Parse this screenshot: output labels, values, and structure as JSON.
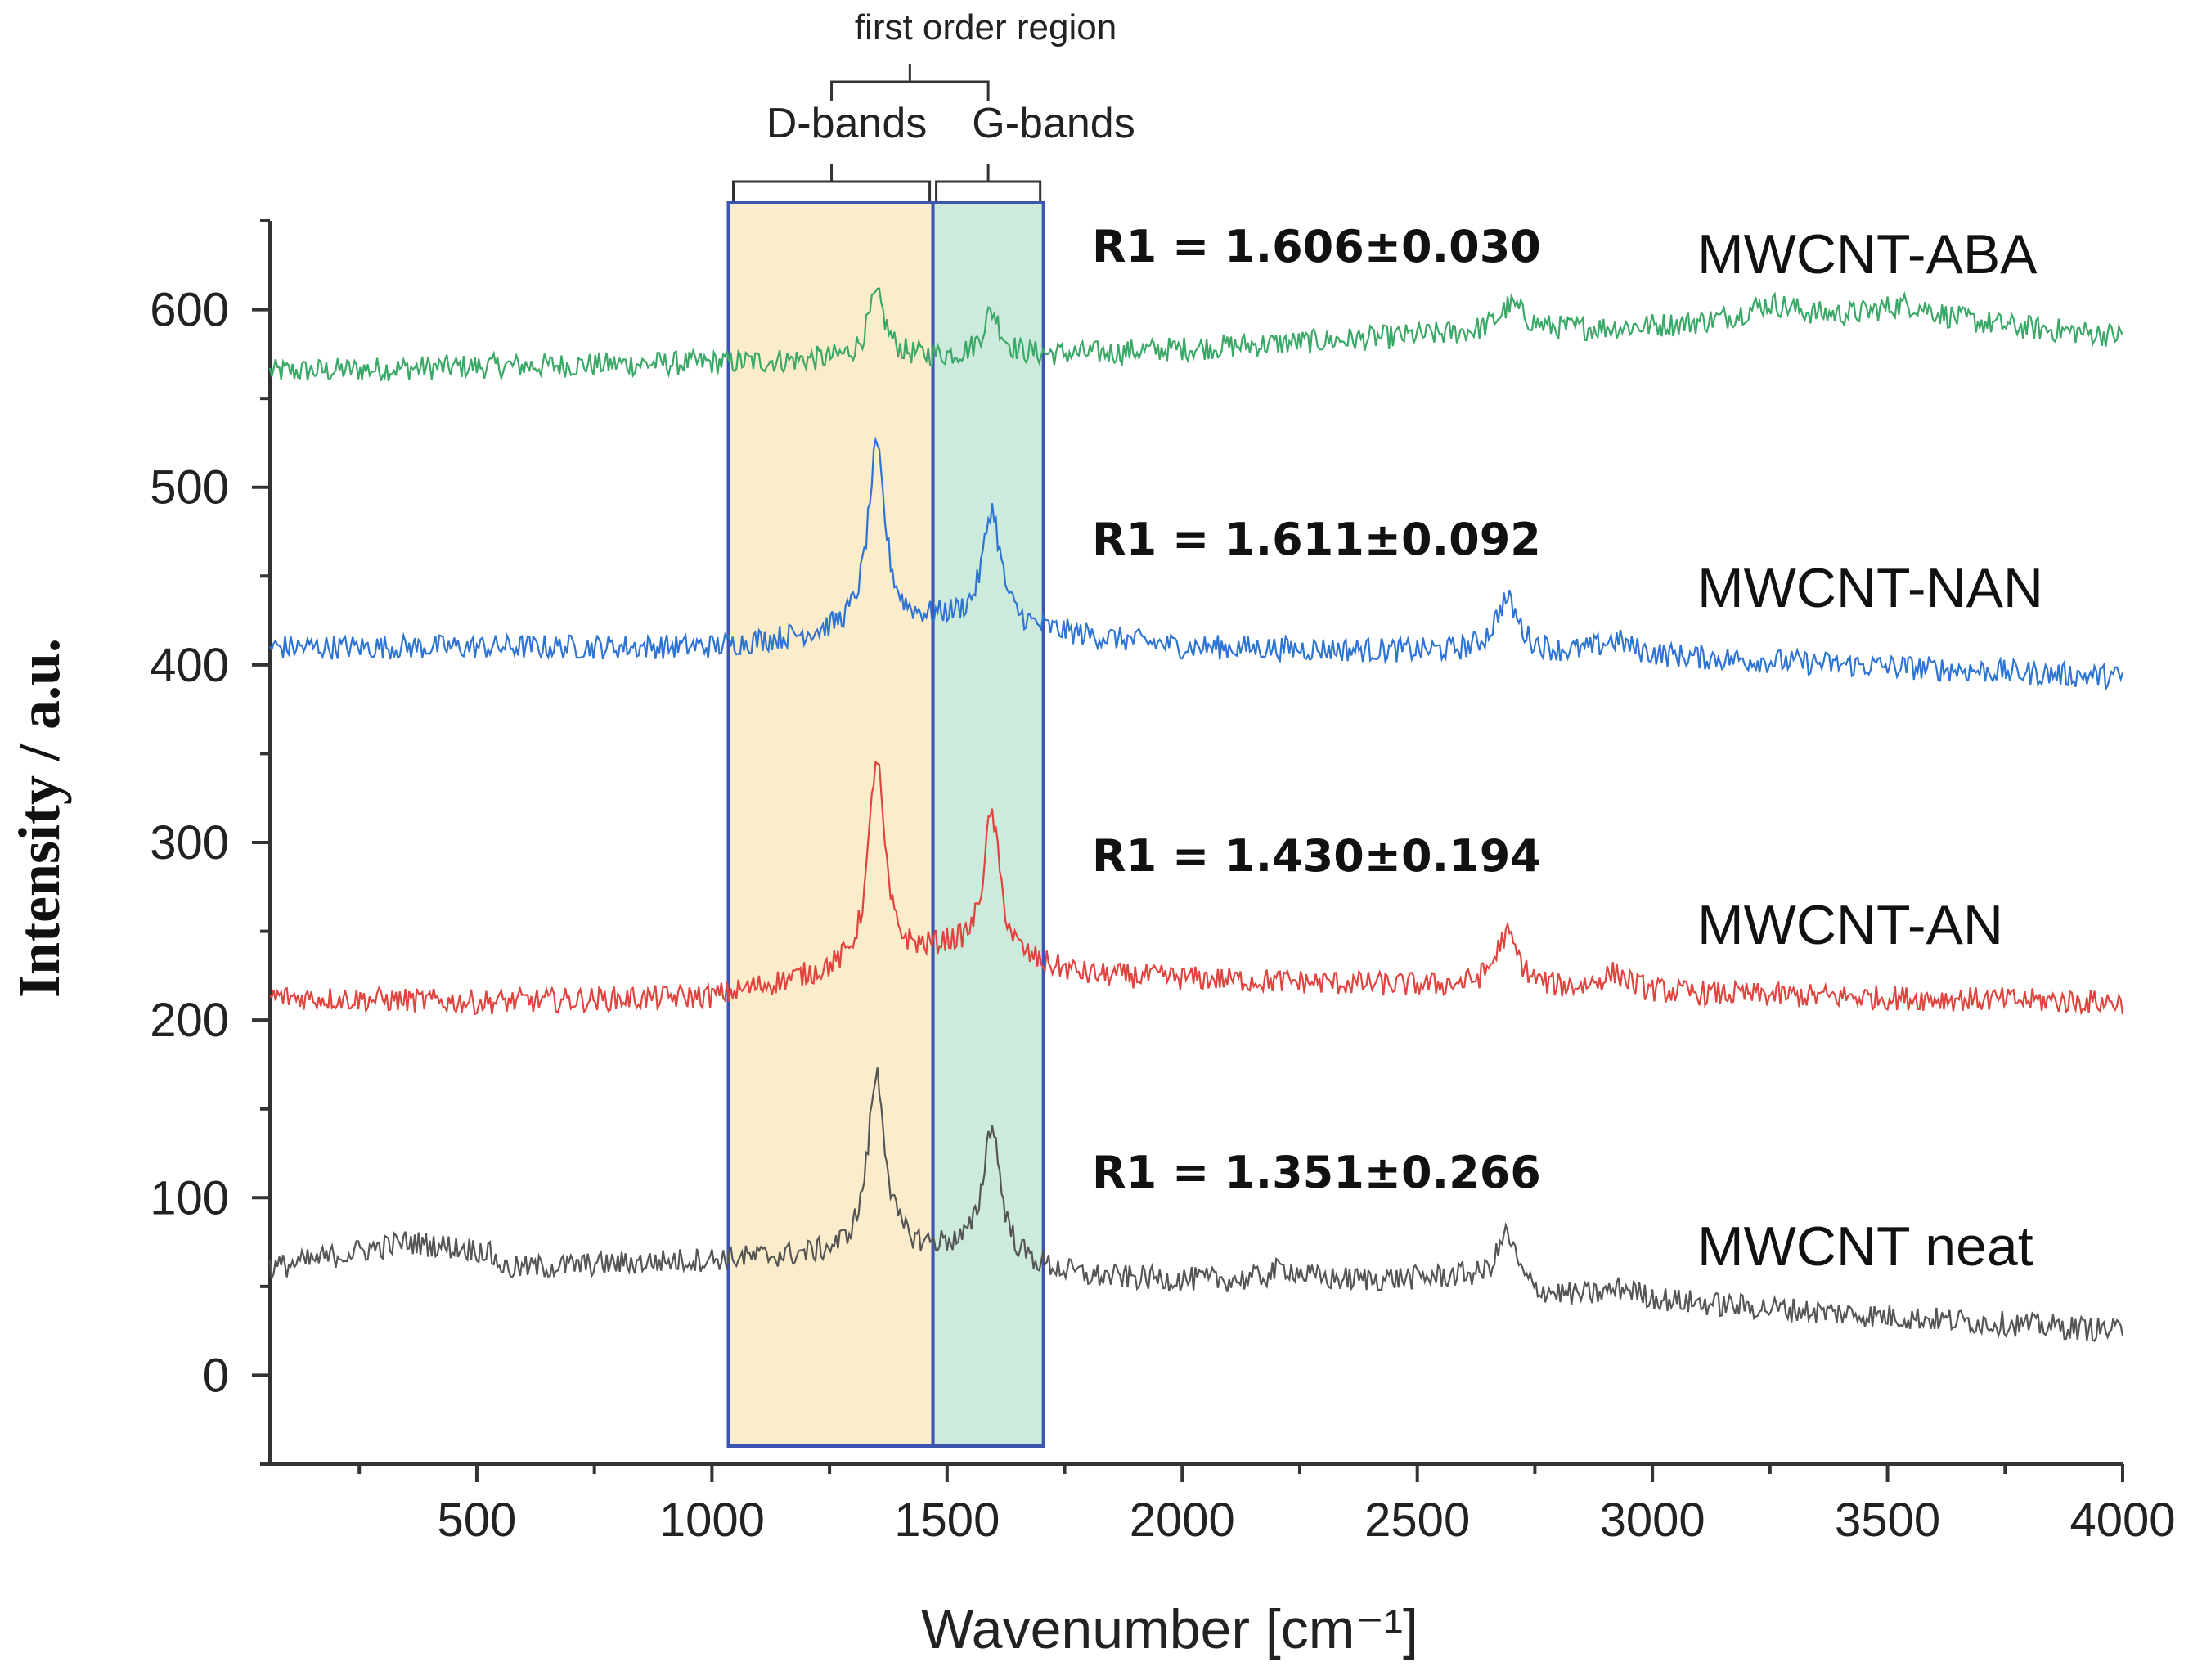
{
  "chart_data": {
    "type": "line",
    "xlabel": "Wavenumber [cm⁻¹]",
    "ylabel": "Intensity / a.u.",
    "xlim": [
      60,
      4000
    ],
    "ylim": [
      -50,
      650
    ],
    "x_ticks": [
      500,
      1000,
      1500,
      2000,
      2500,
      3000,
      3500,
      4000
    ],
    "y_ticks": [
      0,
      100,
      200,
      300,
      400,
      500,
      600
    ],
    "x_tick_labels": [
      "500",
      "1000",
      "1500",
      "2000",
      "2500",
      "3000",
      "3500",
      "4000"
    ],
    "y_tick_labels": [
      "0",
      "100",
      "200",
      "300",
      "400",
      "500",
      "600"
    ],
    "regions": {
      "top_label": "first order region",
      "d_band": {
        "label": "D-bands",
        "x_range": [
          1035,
          1470
        ],
        "color": "#fbeccb"
      },
      "g_band": {
        "label": "G-bands",
        "x_range": [
          1470,
          1705
        ],
        "color": "#cdebdc"
      }
    },
    "series": [
      {
        "name": "MWCNT-ABA",
        "ratio_label": "R1 = 1.606±0.030",
        "color": "#3aa866",
        "baseline": [
          [
            60,
            565
          ],
          [
            500,
            568
          ],
          [
            1000,
            570
          ],
          [
            1800,
            575
          ],
          [
            2500,
            585
          ],
          [
            3000,
            590
          ],
          [
            3500,
            595
          ],
          [
            4000,
            585
          ]
        ],
        "peaks": [
          [
            1350,
            35,
            45
          ],
          [
            1595,
            25,
            45
          ],
          [
            2700,
            15,
            70
          ],
          [
            3250,
            10,
            150
          ],
          [
            3550,
            8,
            150
          ]
        ]
      },
      {
        "name": "MWCNT-NAN",
        "ratio_label": "R1 = 1.611±0.092",
        "color": "#2e74d2",
        "baseline": [
          [
            60,
            410
          ],
          [
            1000,
            410
          ],
          [
            1500,
            425
          ],
          [
            2000,
            410
          ],
          [
            3000,
            405
          ],
          [
            4000,
            393
          ]
        ],
        "peaks": [
          [
            1350,
            100,
            45
          ],
          [
            1595,
            65,
            45
          ],
          [
            2690,
            30,
            60
          ],
          [
            2920,
            8,
            80
          ]
        ]
      },
      {
        "name": "MWCNT-AN",
        "ratio_label": "R1 = 1.430±0.194",
        "color": "#e0443f",
        "baseline": [
          [
            60,
            213
          ],
          [
            500,
            210
          ],
          [
            1000,
            213
          ],
          [
            1500,
            240
          ],
          [
            1800,
            225
          ],
          [
            3000,
            215
          ],
          [
            4000,
            210
          ]
        ],
        "peaks": [
          [
            1350,
            115,
            40
          ],
          [
            1595,
            80,
            42
          ],
          [
            2690,
            30,
            60
          ],
          [
            2920,
            10,
            80
          ]
        ]
      },
      {
        "name": "MWCNT neat",
        "ratio_label": "R1 = 1.351±0.266",
        "color": "#555555",
        "baseline": [
          [
            60,
            60
          ],
          [
            350,
            75
          ],
          [
            520,
            70
          ],
          [
            560,
            60
          ],
          [
            1000,
            65
          ],
          [
            1500,
            70
          ],
          [
            1800,
            55
          ],
          [
            2200,
            52
          ],
          [
            2600,
            55
          ],
          [
            2750,
            45
          ],
          [
            3000,
            42
          ],
          [
            3500,
            33
          ],
          [
            4000,
            25
          ]
        ],
        "peaks": [
          [
            1350,
            100,
            45
          ],
          [
            1595,
            75,
            45
          ],
          [
            2690,
            30,
            50
          ],
          [
            2220,
            8,
            80
          ],
          [
            2940,
            6,
            80
          ]
        ]
      }
    ]
  }
}
